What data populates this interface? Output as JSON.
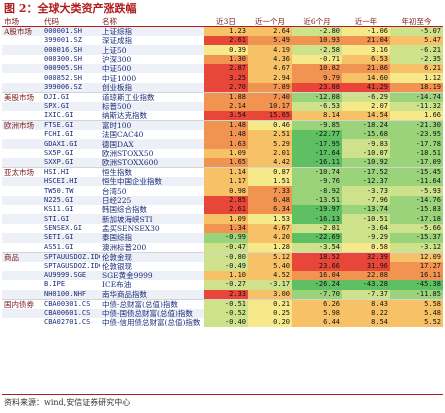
{
  "figure": {
    "title": "图 2：全球大类资产涨跌幅"
  },
  "headers": [
    "市场",
    "代码",
    "名称",
    "近3日",
    "近一个月",
    "近6个月",
    "近一年",
    "年初至今"
  ],
  "heat_colors": {
    "strong_neg": "#5fbf63",
    "neg": "#9bd37a",
    "mild_neg": "#cde28a",
    "neutral": "#f5e98a",
    "mild_pos": "#f7c267",
    "pos": "#f29451",
    "strong_pos": "#e9463a"
  },
  "rows": [
    {
      "group": "A股市场",
      "code": "000001.SH",
      "name": "上证综指",
      "values": [
        "1.23",
        "2.64",
        "-2.80",
        "-1.06",
        "-5.07"
      ]
    },
    {
      "group": "",
      "code": "399001.SZ",
      "name": "深证成指",
      "values": [
        "2.61",
        "5.49",
        "10.93",
        "21.04",
        "5.47"
      ]
    },
    {
      "group": "",
      "code": "000016.SH",
      "name": "上证50",
      "values": [
        "0.39",
        "4.19",
        "-2.58",
        "3.16",
        "-6.21"
      ]
    },
    {
      "group": "",
      "code": "000300.SH",
      "name": "沪深300",
      "values": [
        "1.30",
        "4.36",
        "-0.71",
        "6.53",
        "-2.35"
      ]
    },
    {
      "group": "",
      "code": "000905.SH",
      "name": "中证500",
      "values": [
        "2.87",
        "4.67",
        "10.82",
        "21.86",
        "6.21"
      ]
    },
    {
      "group": "",
      "code": "000852.SH",
      "name": "中证1000",
      "values": [
        "3.25",
        "2.94",
        "9.79",
        "14.60",
        "1.12"
      ]
    },
    {
      "group": "",
      "code": "399006.SZ",
      "name": "创业板指",
      "values": [
        "2.70",
        "7.89",
        "23.88",
        "41.29",
        "18.19"
      ]
    },
    {
      "group": "美股市场",
      "code": "DJI.GI",
      "name": "道琼斯工业指数",
      "values": [
        "1.88",
        "7.40",
        "-12.08",
        "-6.29",
        "-14.74"
      ]
    },
    {
      "group": "",
      "code": "SPX.GI",
      "name": "标普500",
      "values": [
        "2.14",
        "10.17",
        "-6.53",
        "2.07",
        "-11.32"
      ]
    },
    {
      "group": "",
      "code": "IXIC.GI",
      "name": "纳斯达克指数",
      "values": [
        "3.54",
        "15.65",
        "8.14",
        "14.54",
        "1.66"
      ]
    },
    {
      "group": "欧洲市场",
      "code": "FTSE.GI",
      "name": "富时100",
      "values": [
        "1.48",
        "0.46",
        "-9.85",
        "-18.24",
        "-21.30"
      ]
    },
    {
      "group": "",
      "code": "FCHI.GI",
      "name": "法国CAC40",
      "values": [
        "1.48",
        "2.51",
        "-22.77",
        "-15.68",
        "-23.95"
      ]
    },
    {
      "group": "",
      "code": "GDAXI.GI",
      "name": "德国DAX",
      "values": [
        "1.63",
        "5.29",
        "-17.95",
        "-9.83",
        "-17.78"
      ]
    },
    {
      "group": "",
      "code": "SX5P.GI",
      "name": "欧洲STOXX50",
      "values": [
        "1.09",
        "2.01",
        "-17.64",
        "-10.07",
        "-18.51"
      ]
    },
    {
      "group": "",
      "code": "SXXP.GI",
      "name": "欧洲STOXX600",
      "values": [
        "1.65",
        "4.42",
        "-16.11",
        "-10.92",
        "-17.09"
      ]
    },
    {
      "group": "亚太市场",
      "code": "HSI.HI",
      "name": "恒生指数",
      "values": [
        "1.14",
        "0.87",
        "-10.74",
        "-17.52",
        "-15.45"
      ]
    },
    {
      "group": "",
      "code": "HSCEI.HI",
      "name": "恒生中国企业指数",
      "values": [
        "1.17",
        "1.51",
        "-9.76",
        "-12.37",
        "-11.64"
      ]
    },
    {
      "group": "",
      "code": "TW50.TW",
      "name": "台湾50",
      "values": [
        "0.98",
        "7.33",
        "-8.92",
        "-3.73",
        "-5.93"
      ]
    },
    {
      "group": "",
      "code": "N225.GI",
      "name": "日经225",
      "values": [
        "2.85",
        "6.48",
        "-13.51",
        "-7.96",
        "-14.76"
      ]
    },
    {
      "group": "",
      "code": "KS11.GI",
      "name": "韩国综合指数",
      "values": [
        "2.61",
        "6.34",
        "-19.97",
        "-13.74",
        "-15.83"
      ]
    },
    {
      "group": "",
      "code": "STI.GI",
      "name": "新加坡海峡STI",
      "values": [
        "1.09",
        "1.53",
        "-16.13",
        "-10.51",
        "-17.18"
      ]
    },
    {
      "group": "",
      "code": "SENSEX.GI",
      "name": "孟买SENSEX30",
      "values": [
        "1.34",
        "4.67",
        "-2.81",
        "-3.64",
        "-5.66"
      ]
    },
    {
      "group": "",
      "code": "SETI.GI",
      "name": "泰国综指",
      "values": [
        "-0.99",
        "4.20",
        "-22.69",
        "-9.29",
        "-15.37"
      ]
    },
    {
      "group": "",
      "code": "AS51.GI",
      "name": "澳洲标普200",
      "values": [
        "-0.47",
        "1.28",
        "-3.54",
        "0.58",
        "-3.12"
      ]
    },
    {
      "group": "商品",
      "code": "SPTAUUSDOZ.IDC",
      "name": "伦敦金现",
      "values": [
        "-0.80",
        "5.12",
        "18.52",
        "32.39",
        "12.09"
      ]
    },
    {
      "group": "",
      "code": "SPTAGUSDOZ.IDC",
      "name": "伦敦银现",
      "values": [
        "-0.49",
        "5.40",
        "23.66",
        "31.96",
        "17.27"
      ]
    },
    {
      "group": "",
      "code": "AU9999.SGE",
      "name": "SGE黄金9999",
      "values": [
        "1.10",
        "4.52",
        "16.04",
        "22.88",
        "16.11"
      ]
    },
    {
      "group": "",
      "code": "B.IPE",
      "name": "ICE布油",
      "values": [
        "-0.27",
        "-3.17",
        "-26.24",
        "-43.28",
        "-45.38"
      ]
    },
    {
      "group": "",
      "code": "NH0100.NHF",
      "name": "南华商品指数",
      "values": [
        "2.33",
        "3.00",
        "-7.70",
        "-7.37",
        "-11.85"
      ]
    },
    {
      "group": "国内债券",
      "code": "CBA00301.CS",
      "name": "中债-总财富(总值)指数",
      "values": [
        "-0.51",
        "0.21",
        "6.26",
        "8.43",
        "5.58"
      ]
    },
    {
      "group": "",
      "code": "CBA00601.CS",
      "name": "中债-国债总财富(总值)指数",
      "values": [
        "-0.52",
        "0.25",
        "5.98",
        "8.22",
        "5.48"
      ]
    },
    {
      "group": "",
      "code": "CBA02701.CS",
      "name": "中债-信用债总财富(总值)指数",
      "values": [
        "-0.40",
        "0.20",
        "6.44",
        "8.54",
        "5.52"
      ]
    }
  ],
  "footer": {
    "source": "资料来源：wind,安信证券研究中心"
  }
}
